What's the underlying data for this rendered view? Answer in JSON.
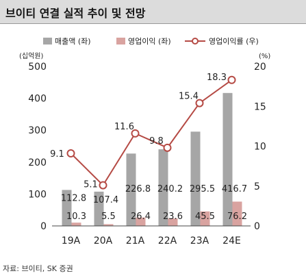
{
  "title": "브이티 연결 실적 추이 및 전망",
  "source": "자료: 브이티, SK 증권",
  "colors": {
    "sales": "#a6a6a6",
    "op_profit": "#d9a3a0",
    "margin_line": "#b54a44",
    "title_bg": "#dcdcdc"
  },
  "chart_data": {
    "type": "bar",
    "categories": [
      "19A",
      "20A",
      "21A",
      "22A",
      "23A",
      "24E"
    ],
    "series": [
      {
        "name": "매출액 (좌)",
        "type": "bar",
        "axis": "left",
        "values": [
          112.8,
          107.4,
          226.8,
          240.2,
          295.5,
          416.7
        ]
      },
      {
        "name": "영업이익 (좌)",
        "type": "bar",
        "axis": "left",
        "values": [
          10.3,
          5.5,
          26.4,
          23.6,
          45.5,
          76.2
        ]
      },
      {
        "name": "영업이익률 (우)",
        "type": "line",
        "axis": "right",
        "values": [
          9.1,
          5.1,
          11.6,
          9.8,
          15.4,
          18.3
        ]
      }
    ],
    "left_axis": {
      "unit": "(십억원)",
      "ylim": [
        0,
        500
      ],
      "ticks": [
        "0",
        "100",
        "200",
        "300",
        "400",
        "500"
      ]
    },
    "right_axis": {
      "unit": "(%)",
      "ylim": [
        0,
        20
      ],
      "ticks": [
        "0",
        "5",
        "10",
        "15",
        "20"
      ]
    },
    "legend_position": "top",
    "grid": false
  }
}
